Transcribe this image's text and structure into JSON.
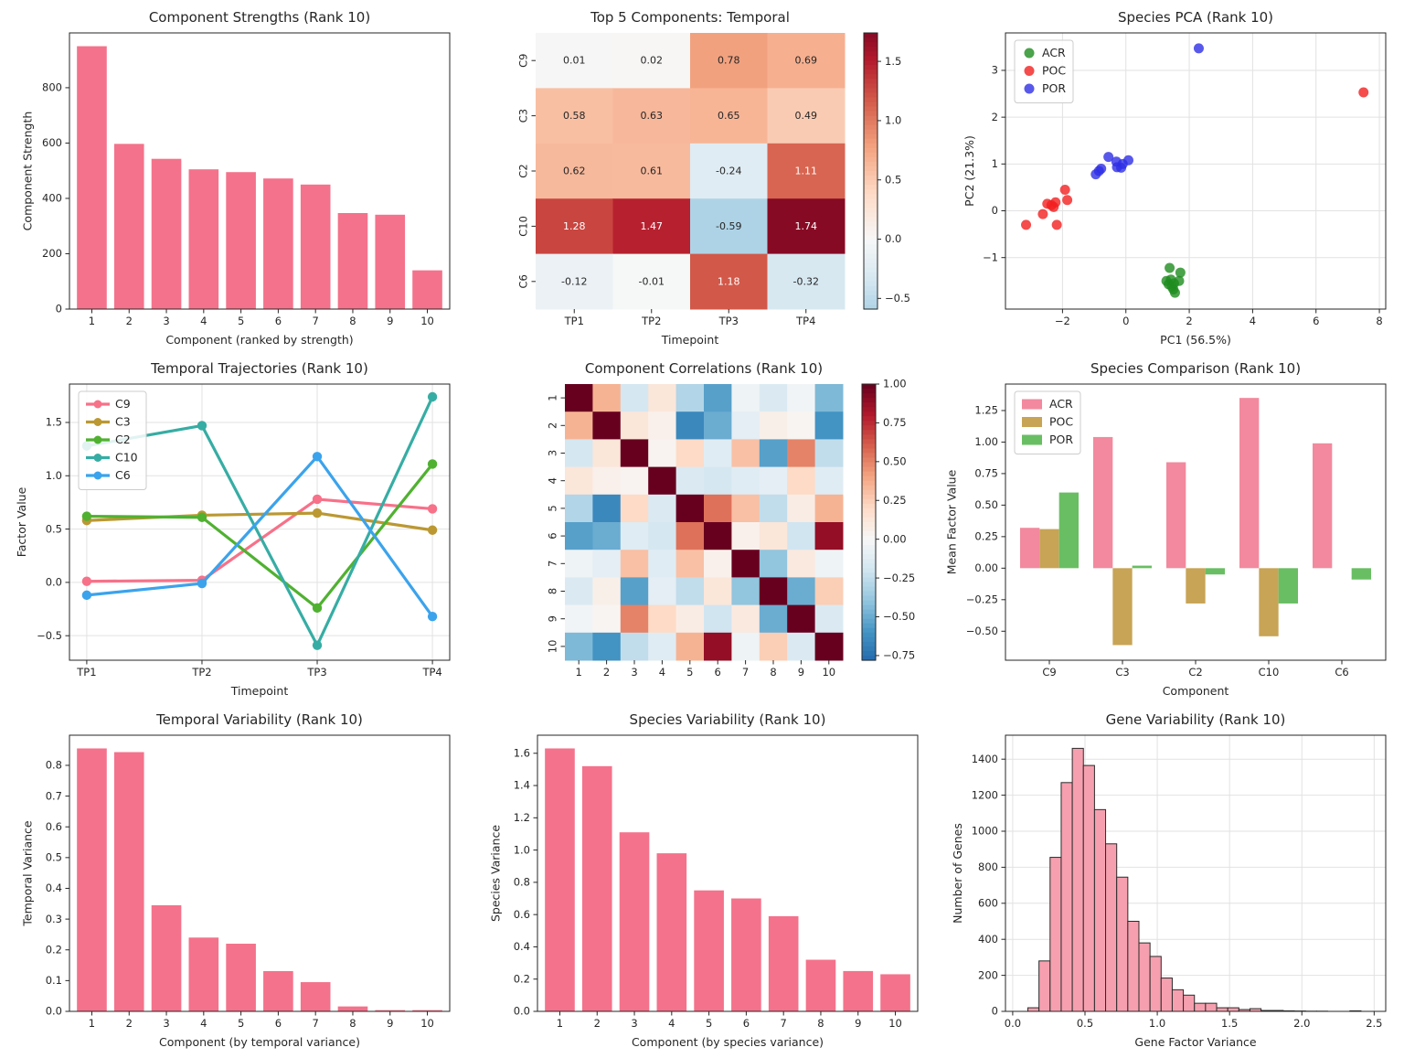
{
  "figure": {
    "background": "#ffffff",
    "grid_color": "#e2e2e2",
    "spine_color": "#262626",
    "text_color": "#262626"
  },
  "chart_data": [
    {
      "id": "component-strengths",
      "type": "bar",
      "title": "Component Strengths (Rank 10)",
      "xlabel": "Component (ranked by strength)",
      "ylabel": "Component Strength",
      "categories": [
        "1",
        "2",
        "3",
        "4",
        "5",
        "6",
        "7",
        "8",
        "9",
        "10"
      ],
      "values": [
        950,
        597,
        543,
        505,
        495,
        472,
        450,
        347,
        341,
        140
      ],
      "ylim": [
        0,
        998
      ],
      "yticks": [
        0,
        200,
        400,
        600,
        800
      ],
      "ytick_labels": [
        "0",
        "200",
        "400",
        "600",
        "800"
      ],
      "grid": false,
      "color": "#f4728b"
    },
    {
      "id": "top5-temporal",
      "type": "heatmap",
      "title": "Top 5 Components: Temporal",
      "xlabel": "Timepoint",
      "rows": [
        "C9",
        "C3",
        "C2",
        "C10",
        "C6"
      ],
      "cols": [
        "TP1",
        "TP2",
        "TP3",
        "TP4"
      ],
      "matrix": [
        [
          0.01,
          0.02,
          0.78,
          0.69
        ],
        [
          0.58,
          0.63,
          0.65,
          0.49
        ],
        [
          0.62,
          0.61,
          -0.24,
          1.11
        ],
        [
          1.28,
          1.47,
          -0.59,
          1.74
        ],
        [
          -0.12,
          -0.01,
          1.18,
          -0.32
        ]
      ],
      "annotate": true,
      "vmin": -0.59,
      "vmax": 1.74,
      "norm": [
        -1.9,
        1.9
      ],
      "colorbar_ticks": [
        1.5,
        1.0,
        0.5,
        0.0,
        -0.5
      ],
      "colorbar_tick_labels": [
        "1.5",
        "1.0",
        "0.5",
        "0.0",
        "−0.5"
      ]
    },
    {
      "id": "species-pca",
      "type": "scatter",
      "title": "Species PCA (Rank 10)",
      "xlabel": "PC1 (56.5%)",
      "ylabel": "PC2 (21.3%)",
      "xlim": [
        -3.8,
        8.2
      ],
      "ylim": [
        -2.1,
        3.8
      ],
      "xticks": [
        -2,
        0,
        2,
        4,
        6,
        8
      ],
      "xtick_labels": [
        "−2",
        "0",
        "2",
        "4",
        "6",
        "8"
      ],
      "yticks": [
        -1,
        0,
        1,
        2,
        3
      ],
      "ytick_labels": [
        "−1",
        "0",
        "1",
        "2",
        "3"
      ],
      "grid": true,
      "legend": true,
      "marker_opacity": 0.8,
      "series": [
        {
          "name": "ACR",
          "color": "#1e8c1e",
          "points": [
            [
              1.38,
              -1.22
            ],
            [
              1.72,
              -1.32
            ],
            [
              1.28,
              -1.5
            ],
            [
              1.42,
              -1.47
            ],
            [
              1.52,
              -1.55
            ],
            [
              1.68,
              -1.5
            ],
            [
              1.35,
              -1.57
            ],
            [
              1.45,
              -1.62
            ],
            [
              1.5,
              -1.68
            ],
            [
              1.55,
              -1.75
            ]
          ]
        },
        {
          "name": "POC",
          "color": "#f21f1f",
          "points": [
            [
              7.5,
              2.53
            ],
            [
              -3.15,
              -0.3
            ],
            [
              -2.62,
              -0.07
            ],
            [
              -2.48,
              0.15
            ],
            [
              -2.35,
              0.12
            ],
            [
              -2.28,
              0.08
            ],
            [
              -2.22,
              0.18
            ],
            [
              -2.18,
              -0.3
            ],
            [
              -1.92,
              0.45
            ],
            [
              -1.85,
              0.23
            ]
          ]
        },
        {
          "name": "POR",
          "color": "#2e2ee6",
          "points": [
            [
              2.3,
              3.47
            ],
            [
              -0.95,
              0.78
            ],
            [
              -0.85,
              0.85
            ],
            [
              -0.78,
              0.9
            ],
            [
              -0.55,
              1.15
            ],
            [
              -0.3,
              1.05
            ],
            [
              -0.28,
              0.93
            ],
            [
              -0.15,
              0.92
            ],
            [
              -0.1,
              1.0
            ],
            [
              0.08,
              1.08
            ]
          ]
        }
      ]
    },
    {
      "id": "temporal-trajectories",
      "type": "line",
      "title": "Temporal Trajectories (Rank 10)",
      "xlabel": "Timepoint",
      "ylabel": "Factor Value",
      "categories": [
        "TP1",
        "TP2",
        "TP3",
        "TP4"
      ],
      "ylim": [
        -0.73,
        1.86
      ],
      "yticks": [
        -0.5,
        0.0,
        0.5,
        1.0,
        1.5
      ],
      "ytick_labels": [
        "−0.5",
        "0.0",
        "0.5",
        "1.0",
        "1.5"
      ],
      "grid": true,
      "legend": true,
      "series": [
        {
          "name": "C9",
          "color": "#f77189",
          "values": [
            0.01,
            0.02,
            0.78,
            0.69
          ]
        },
        {
          "name": "C3",
          "color": "#bb9832",
          "values": [
            0.58,
            0.63,
            0.65,
            0.49
          ]
        },
        {
          "name": "C2",
          "color": "#50b131",
          "values": [
            0.62,
            0.61,
            -0.24,
            1.11
          ]
        },
        {
          "name": "C10",
          "color": "#36ada4",
          "values": [
            1.28,
            1.47,
            -0.59,
            1.74
          ]
        },
        {
          "name": "C6",
          "color": "#3ba3ec",
          "values": [
            -0.12,
            -0.01,
            1.18,
            -0.32
          ]
        }
      ]
    },
    {
      "id": "component-correlations",
      "type": "heatmap",
      "title": "Component Correlations (Rank 10)",
      "xlabel": "",
      "rows": [
        "1",
        "2",
        "3",
        "4",
        "5",
        "6",
        "7",
        "8",
        "9",
        "10"
      ],
      "cols": [
        "1",
        "2",
        "3",
        "4",
        "5",
        "6",
        "7",
        "8",
        "9",
        "10"
      ],
      "matrix": [
        [
          1.0,
          0.35,
          -0.18,
          0.12,
          -0.3,
          -0.55,
          -0.05,
          -0.15,
          -0.03,
          -0.45
        ],
        [
          0.35,
          1.0,
          0.12,
          0.05,
          -0.65,
          -0.5,
          -0.1,
          0.06,
          0.02,
          -0.6
        ],
        [
          -0.18,
          0.12,
          1.0,
          0.03,
          0.2,
          -0.12,
          0.3,
          -0.55,
          0.5,
          -0.25
        ],
        [
          0.12,
          0.05,
          0.03,
          1.0,
          -0.15,
          -0.18,
          -0.12,
          -0.1,
          0.2,
          -0.12
        ],
        [
          -0.3,
          -0.65,
          0.2,
          -0.15,
          1.0,
          0.55,
          0.3,
          -0.25,
          0.08,
          0.35
        ],
        [
          -0.55,
          -0.5,
          -0.12,
          -0.18,
          0.55,
          1.0,
          0.05,
          0.12,
          -0.2,
          0.88
        ],
        [
          -0.05,
          -0.1,
          0.3,
          -0.12,
          0.3,
          0.05,
          1.0,
          -0.4,
          0.1,
          -0.05
        ],
        [
          -0.15,
          0.06,
          -0.55,
          -0.1,
          -0.25,
          0.12,
          -0.4,
          1.0,
          -0.5,
          0.25
        ],
        [
          -0.03,
          0.02,
          0.5,
          0.2,
          0.08,
          -0.2,
          0.1,
          -0.5,
          1.0,
          -0.15
        ],
        [
          -0.45,
          -0.6,
          -0.25,
          -0.12,
          0.35,
          0.88,
          -0.05,
          0.25,
          -0.15,
          1.0
        ]
      ],
      "annotate": false,
      "vmin": -0.78,
      "vmax": 1.0,
      "norm": [
        -1.0,
        1.0
      ],
      "colorbar_ticks": [
        1.0,
        0.75,
        0.5,
        0.25,
        0.0,
        -0.25,
        -0.5,
        -0.75
      ],
      "colorbar_tick_labels": [
        "1.00",
        "0.75",
        "0.50",
        "0.25",
        "0.00",
        "−0.25",
        "−0.50",
        "−0.75"
      ]
    },
    {
      "id": "species-comparison",
      "type": "grouped_bar",
      "title": "Species Comparison (Rank 10)",
      "xlabel": "Component",
      "ylabel": "Mean Factor Value",
      "categories": [
        "C9",
        "C3",
        "C2",
        "C10",
        "C6"
      ],
      "ylim": [
        -0.73,
        1.46
      ],
      "yticks": [
        -0.5,
        -0.25,
        0.0,
        0.25,
        0.5,
        0.75,
        1.0,
        1.25
      ],
      "ytick_labels": [
        "−0.50",
        "−0.25",
        "0.00",
        "0.25",
        "0.50",
        "0.75",
        "1.00",
        "1.25"
      ],
      "grid": false,
      "legend": true,
      "series": [
        {
          "name": "ACR",
          "color": "#f2899e",
          "values": [
            0.32,
            1.04,
            0.84,
            1.35,
            0.99
          ]
        },
        {
          "name": "POC",
          "color": "#c7a456",
          "values": [
            0.31,
            -0.61,
            -0.28,
            -0.54,
            0.0
          ]
        },
        {
          "name": "POR",
          "color": "#69be63",
          "values": [
            0.6,
            0.02,
            -0.05,
            -0.28,
            -0.09
          ]
        }
      ]
    },
    {
      "id": "temporal-variability",
      "type": "bar",
      "title": "Temporal Variability (Rank 10)",
      "xlabel": "Component (by temporal variance)",
      "ylabel": "Temporal Variance",
      "categories": [
        "1",
        "2",
        "3",
        "4",
        "5",
        "6",
        "7",
        "8",
        "9",
        "10"
      ],
      "values": [
        0.855,
        0.843,
        0.345,
        0.24,
        0.22,
        0.131,
        0.095,
        0.016,
        0.004,
        0.004
      ],
      "ylim": [
        0,
        0.898
      ],
      "yticks": [
        0.0,
        0.1,
        0.2,
        0.3,
        0.4,
        0.5,
        0.6,
        0.7,
        0.8
      ],
      "ytick_labels": [
        "0.0",
        "0.1",
        "0.2",
        "0.3",
        "0.4",
        "0.5",
        "0.6",
        "0.7",
        "0.8"
      ],
      "grid": false,
      "color": "#f4728b"
    },
    {
      "id": "species-variability",
      "type": "bar",
      "title": "Species Variability (Rank 10)",
      "xlabel": "Component (by species variance)",
      "ylabel": "Species Variance",
      "categories": [
        "1",
        "2",
        "3",
        "4",
        "5",
        "6",
        "7",
        "8",
        "9",
        "10"
      ],
      "values": [
        1.63,
        1.52,
        1.11,
        0.98,
        0.75,
        0.7,
        0.59,
        0.32,
        0.25,
        0.23
      ],
      "ylim": [
        0,
        1.712
      ],
      "yticks": [
        0.0,
        0.2,
        0.4,
        0.6,
        0.8,
        1.0,
        1.2,
        1.4,
        1.6
      ],
      "ytick_labels": [
        "0.0",
        "0.2",
        "0.4",
        "0.6",
        "0.8",
        "1.0",
        "1.2",
        "1.4",
        "1.6"
      ],
      "grid": false,
      "color": "#f4728b"
    },
    {
      "id": "gene-variability",
      "type": "histogram",
      "title": "Gene Variability (Rank 10)",
      "xlabel": "Gene Factor Variance",
      "ylabel": "Number of Genes",
      "bins": {
        "start": 0.105,
        "width": 0.0768,
        "counts": [
          20,
          280,
          855,
          1270,
          1460,
          1365,
          1120,
          930,
          745,
          500,
          380,
          305,
          185,
          120,
          90,
          45,
          45,
          20,
          20,
          10,
          15,
          5,
          5,
          3,
          2,
          1,
          1,
          0,
          0,
          3
        ]
      },
      "xlim": [
        -0.05,
        2.58
      ],
      "xticks": [
        0.0,
        0.5,
        1.0,
        1.5,
        2.0,
        2.5
      ],
      "xtick_labels": [
        "0.0",
        "0.5",
        "1.0",
        "1.5",
        "2.0",
        "2.5"
      ],
      "ylim": [
        0,
        1533
      ],
      "yticks": [
        0,
        200,
        400,
        600,
        800,
        1000,
        1200,
        1400
      ],
      "ytick_labels": [
        "0",
        "200",
        "400",
        "600",
        "800",
        "1000",
        "1200",
        "1400"
      ],
      "grid": true,
      "color": "#f6a0af",
      "edge_color": "#2b2b2b"
    }
  ]
}
